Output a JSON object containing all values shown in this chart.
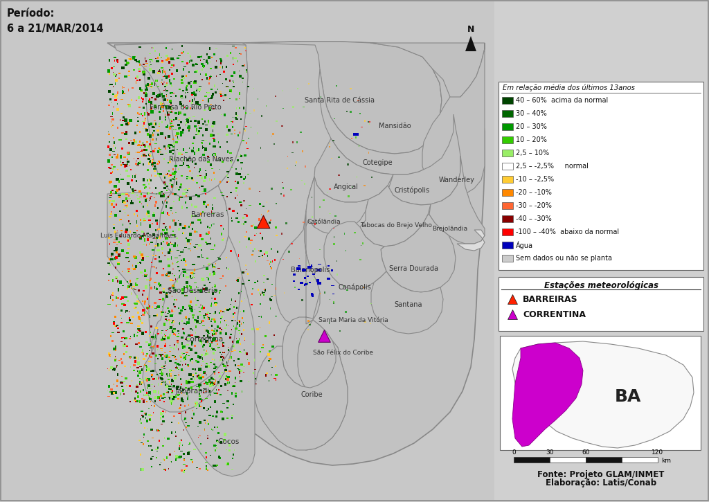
{
  "title_period": "Período:\n6 a 21/MAR/2014",
  "map_bg_color": "#c8c8c8",
  "region_color": "#b8b8b8",
  "legend_title": "Em relação média dos últimos 13anos",
  "legend_items": [
    {
      "label": "40 – 60%  acima da normal",
      "color": "#004400"
    },
    {
      "label": "30 – 40%",
      "color": "#006600"
    },
    {
      "label": "20 – 30%",
      "color": "#009900"
    },
    {
      "label": "10 – 20%",
      "color": "#33cc00"
    },
    {
      "label": "2,5 – 10%",
      "color": "#99ee66"
    },
    {
      "label": "2,5 – -2,5%     normal",
      "color": "#ffffff"
    },
    {
      "label": "-10 – -2,5%",
      "color": "#ffcc33"
    },
    {
      "label": "-20 – -10%",
      "color": "#ff8800"
    },
    {
      "label": "-30 – -20%",
      "color": "#ff6633"
    },
    {
      "label": "-40 – -30%",
      "color": "#880000"
    },
    {
      "label": "-100 – -40%  abaixo da normal",
      "color": "#ff0000"
    },
    {
      "label": "Água",
      "color": "#0000bb"
    },
    {
      "label": "Sem dados ou não se planta",
      "color": "#cccccc"
    }
  ],
  "stations_title": "Estações meteorológicas",
  "stations": [
    {
      "name": "BARREIRAS",
      "color": "#ff2200",
      "marker": "^"
    },
    {
      "name": "CORRENTINA",
      "color": "#cc00cc",
      "marker": "^"
    }
  ],
  "source_text": "Fonte: Projeto GLAM/INMET\nElaboração: Latis/Conab",
  "ba_label": "BA",
  "outer_bg": "#d0d0d0",
  "panel_bg": "#d0d0d0"
}
